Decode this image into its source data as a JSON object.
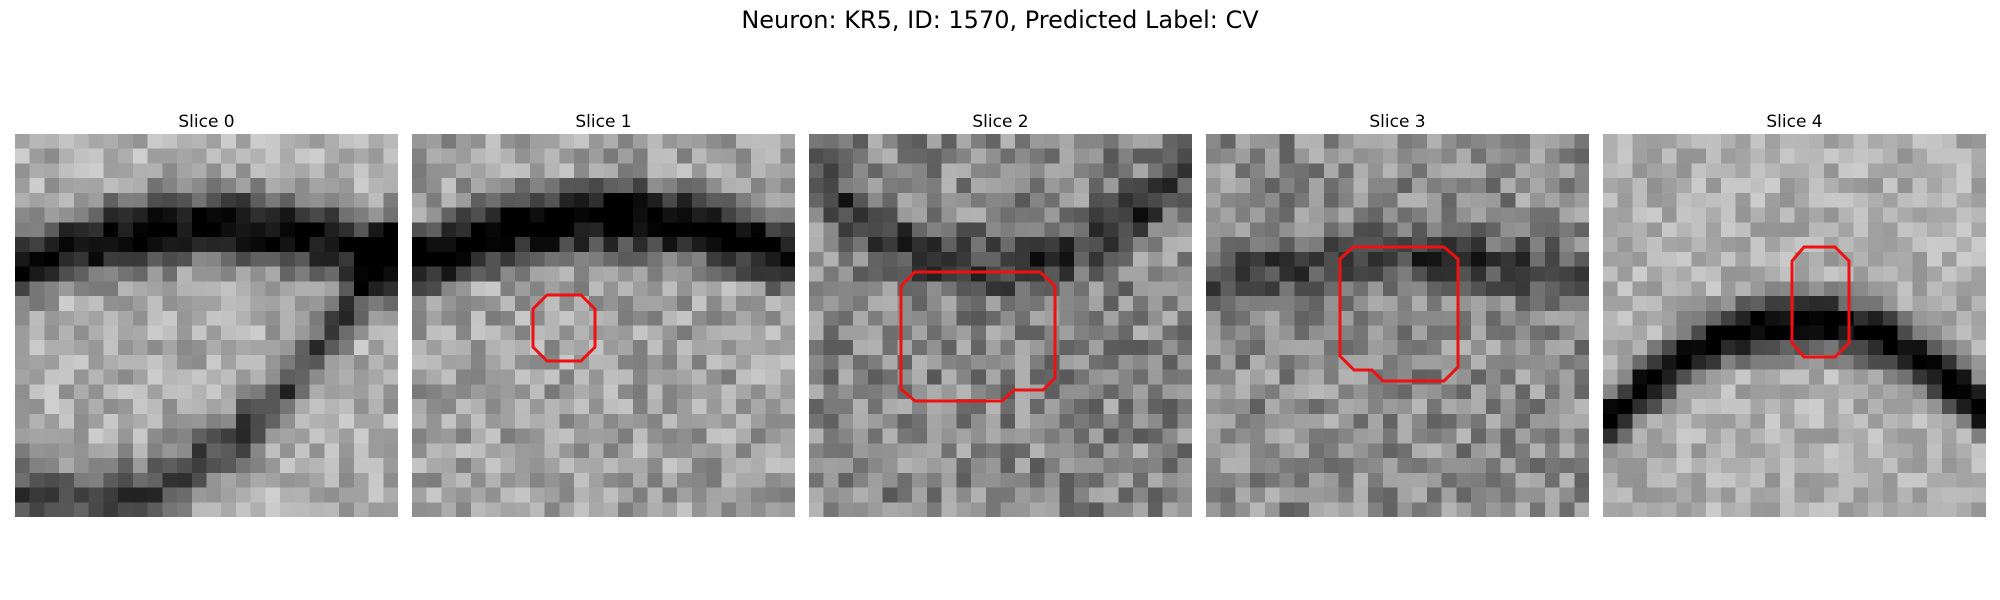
{
  "figure": {
    "suptitle": "Neuron: KR5, ID: 1570, Predicted Label: CV"
  },
  "slices": [
    {
      "title": "Slice 0",
      "has_roi": false
    },
    {
      "title": "Slice 1",
      "has_roi": true
    },
    {
      "title": "Slice 2",
      "has_roi": true
    },
    {
      "title": "Slice 3",
      "has_roi": true
    },
    {
      "title": "Slice 4",
      "has_roi": true
    }
  ],
  "colors": {
    "roi_outline": "#ee1111",
    "colormap": "grayscale"
  }
}
